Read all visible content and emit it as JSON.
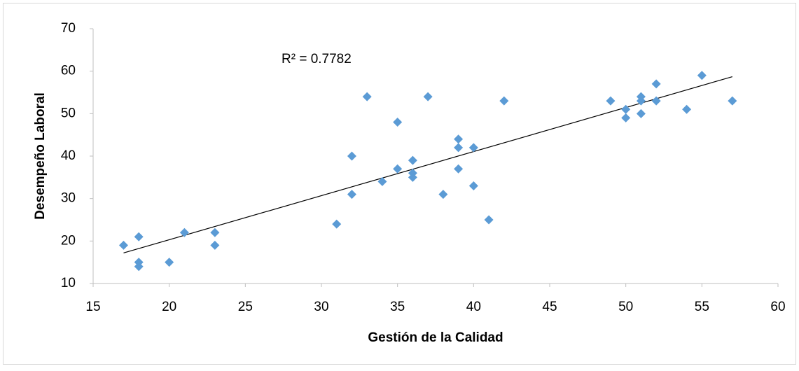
{
  "chart_data": {
    "type": "scatter",
    "x_label": "Gestión de la Calidad",
    "y_label": "Desempeño Laboral",
    "annotation": "R² = 0.7782",
    "xlim": [
      15,
      60
    ],
    "xticks": [
      15,
      20,
      25,
      30,
      35,
      40,
      45,
      50,
      55,
      60
    ],
    "ylim": [
      10,
      70
    ],
    "yticks": [
      10,
      20,
      30,
      40,
      50,
      60,
      70
    ],
    "color": "#5b9bd5",
    "x": [
      17,
      18,
      18,
      18,
      20,
      21,
      23,
      23,
      31,
      32,
      32,
      33,
      34,
      35,
      35,
      36,
      36,
      36,
      37,
      38,
      39,
      39,
      39,
      40,
      40,
      41,
      42,
      49,
      50,
      50,
      51,
      51,
      51,
      52,
      52,
      54,
      55,
      57
    ],
    "values": [
      19,
      21,
      15,
      14,
      15,
      22,
      22,
      19,
      24,
      40,
      31,
      54,
      34,
      48,
      37,
      39,
      36,
      35,
      54,
      31,
      44,
      42,
      37,
      42,
      33,
      25,
      53,
      53,
      51,
      49,
      54,
      53,
      50,
      57,
      53,
      51,
      59,
      53
    ],
    "trendline": {
      "x": [
        17,
        57
      ],
      "values": [
        17.2,
        58.7
      ],
      "color": "#000000"
    }
  }
}
